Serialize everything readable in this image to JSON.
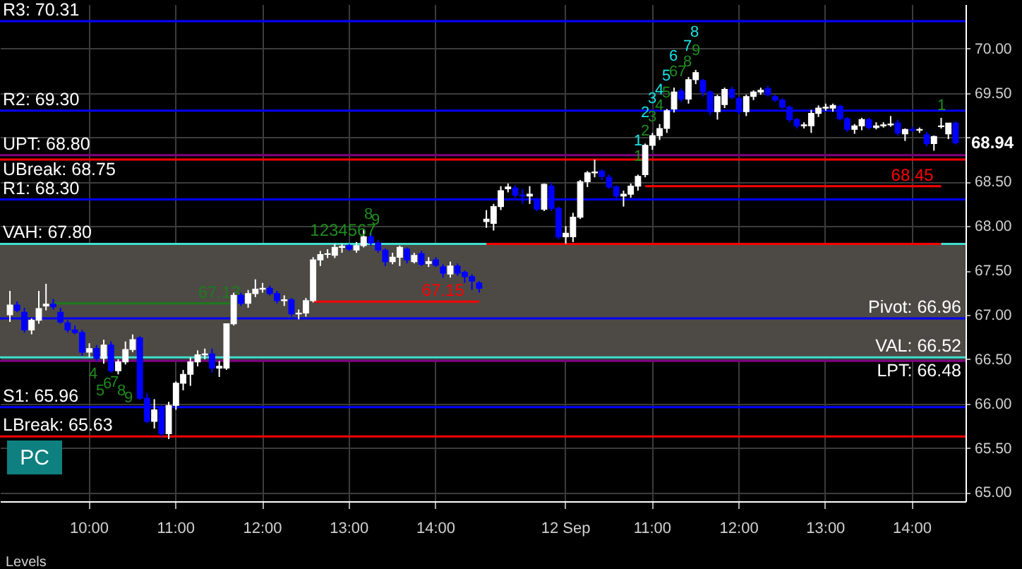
{
  "chart_data": {
    "type": "candlestick",
    "categories": [
      null,
      null,
      null,
      null,
      null,
      null,
      null,
      null,
      null,
      null,
      null,
      "10:00",
      null,
      null,
      null,
      null,
      null,
      null,
      null,
      null,
      null,
      null,
      null,
      "11:00",
      null,
      null,
      null,
      null,
      null,
      null,
      null,
      null,
      null,
      null,
      null,
      "12:00",
      null,
      null,
      null,
      null,
      null,
      null,
      null,
      null,
      null,
      null,
      null,
      "13:00",
      null,
      null,
      null,
      null,
      null,
      null,
      null,
      null,
      null,
      null,
      null,
      "14:00",
      null,
      null,
      null,
      null,
      null,
      null,
      null,
      null,
      null,
      null,
      null,
      null,
      null,
      null,
      null,
      null,
      null,
      "12 Sep",
      null,
      null,
      null,
      null,
      null,
      null,
      null,
      null,
      null,
      null,
      null,
      "11:00",
      null,
      null,
      null,
      null,
      null,
      null,
      null,
      null,
      null,
      null,
      null,
      "12:00",
      null,
      null,
      null,
      null,
      null,
      null,
      null,
      null,
      null,
      null,
      null,
      "13:00",
      null,
      null,
      null,
      null,
      null,
      null,
      null,
      null,
      null,
      null,
      null,
      "14:00",
      null,
      null,
      null,
      null,
      null,
      null
    ],
    "ohlc": [
      [
        67.0,
        67.27,
        66.92,
        67.11
      ],
      [
        67.11,
        67.15,
        67.03,
        67.05
      ],
      [
        67.03,
        67.08,
        66.8,
        66.83
      ],
      [
        66.83,
        66.96,
        66.78,
        66.94
      ],
      [
        66.94,
        67.27,
        66.9,
        67.07
      ],
      [
        67.1,
        67.35,
        67.05,
        67.12
      ],
      [
        67.12,
        67.18,
        67.06,
        67.09
      ],
      [
        67.03,
        67.08,
        66.9,
        66.92
      ],
      [
        66.91,
        66.94,
        66.8,
        66.83
      ],
      [
        66.83,
        66.88,
        66.78,
        66.8
      ],
      [
        66.8,
        66.83,
        66.54,
        66.58
      ],
      [
        66.58,
        66.68,
        66.52,
        66.62
      ],
      [
        66.62,
        66.66,
        66.48,
        66.51
      ],
      [
        66.51,
        66.72,
        66.45,
        66.66
      ],
      [
        66.66,
        66.7,
        66.35,
        66.37
      ],
      [
        66.37,
        66.5,
        66.33,
        66.47
      ],
      [
        66.47,
        66.7,
        66.44,
        66.61
      ],
      [
        66.61,
        66.78,
        66.58,
        66.72
      ],
      [
        66.74,
        66.76,
        66.04,
        66.06
      ],
      [
        66.06,
        66.12,
        65.78,
        65.8
      ],
      [
        65.8,
        66.05,
        65.72,
        65.93
      ],
      [
        65.95,
        65.98,
        65.63,
        65.66
      ],
      [
        65.66,
        66.02,
        65.6,
        65.98
      ],
      [
        65.98,
        66.25,
        65.93,
        66.23
      ],
      [
        66.23,
        66.38,
        66.15,
        66.33
      ],
      [
        66.33,
        66.52,
        66.2,
        66.47
      ],
      [
        66.47,
        66.6,
        66.42,
        66.55
      ],
      [
        66.55,
        66.62,
        66.5,
        66.56
      ],
      [
        66.56,
        66.62,
        66.35,
        66.4
      ],
      [
        66.4,
        66.48,
        66.3,
        66.42
      ],
      [
        66.4,
        66.9,
        66.38,
        66.9
      ],
      [
        66.9,
        67.25,
        66.88,
        67.22
      ],
      [
        67.22,
        67.25,
        67.1,
        67.13
      ],
      [
        67.13,
        67.28,
        67.08,
        67.24
      ],
      [
        67.24,
        67.4,
        67.2,
        67.29
      ],
      [
        67.29,
        67.36,
        67.25,
        67.3
      ],
      [
        67.3,
        67.33,
        67.22,
        67.24
      ],
      [
        67.24,
        67.27,
        67.13,
        67.16
      ],
      [
        67.16,
        67.22,
        67.1,
        67.17
      ],
      [
        67.17,
        67.19,
        66.98,
        67.01
      ],
      [
        67.01,
        67.06,
        66.95,
        67.02
      ],
      [
        67.02,
        67.19,
        66.98,
        67.16
      ],
      [
        67.16,
        67.65,
        67.14,
        67.62
      ],
      [
        67.62,
        67.72,
        67.55,
        67.68
      ],
      [
        67.68,
        67.74,
        67.64,
        67.69
      ],
      [
        67.67,
        67.8,
        67.64,
        67.76
      ],
      [
        67.76,
        67.8,
        67.7,
        67.77
      ],
      [
        67.78,
        67.8,
        67.72,
        67.74
      ],
      [
        67.73,
        67.82,
        67.7,
        67.78
      ],
      [
        67.78,
        67.97,
        67.76,
        67.88
      ],
      [
        67.88,
        67.93,
        67.78,
        67.81
      ],
      [
        67.81,
        67.84,
        67.7,
        67.73
      ],
      [
        67.73,
        67.75,
        67.55,
        67.6
      ],
      [
        67.6,
        67.7,
        67.57,
        67.65
      ],
      [
        67.65,
        67.78,
        67.55,
        67.76
      ],
      [
        67.74,
        67.76,
        67.58,
        67.62
      ],
      [
        67.6,
        67.7,
        67.58,
        67.67
      ],
      [
        67.69,
        67.72,
        67.55,
        67.57
      ],
      [
        67.58,
        67.65,
        67.54,
        67.6
      ],
      [
        67.62,
        67.65,
        67.54,
        67.56
      ],
      [
        67.54,
        67.57,
        67.42,
        67.47
      ],
      [
        67.46,
        67.6,
        67.42,
        67.55
      ],
      [
        67.55,
        67.58,
        67.44,
        67.47
      ],
      [
        67.48,
        67.5,
        67.36,
        67.43
      ],
      [
        67.43,
        67.46,
        67.28,
        67.38
      ],
      [
        67.36,
        67.38,
        67.25,
        67.3
      ],
      [
        68.05,
        68.18,
        67.98,
        68.08
      ],
      [
        68.03,
        68.25,
        67.95,
        68.22
      ],
      [
        68.22,
        68.45,
        68.18,
        68.4
      ],
      [
        68.42,
        68.48,
        68.38,
        68.44
      ],
      [
        68.43,
        68.46,
        68.32,
        68.35
      ],
      [
        68.35,
        68.42,
        68.25,
        68.34
      ],
      [
        68.34,
        68.45,
        68.25,
        68.36
      ],
      [
        68.3,
        68.32,
        68.17,
        68.19
      ],
      [
        68.19,
        68.48,
        68.17,
        68.47
      ],
      [
        68.45,
        68.49,
        68.17,
        68.2
      ],
      [
        68.2,
        68.22,
        67.85,
        67.88
      ],
      [
        67.88,
        68.0,
        67.8,
        67.92
      ],
      [
        67.88,
        68.15,
        67.82,
        68.1
      ],
      [
        68.1,
        68.52,
        68.08,
        68.5
      ],
      [
        68.5,
        68.62,
        68.44,
        68.6
      ],
      [
        68.6,
        68.75,
        68.55,
        68.61
      ],
      [
        68.62,
        68.64,
        68.52,
        68.56
      ],
      [
        68.55,
        68.58,
        68.42,
        68.44
      ],
      [
        68.44,
        68.46,
        68.3,
        68.34
      ],
      [
        68.34,
        68.4,
        68.22,
        68.36
      ],
      [
        68.36,
        68.48,
        68.32,
        68.45
      ],
      [
        68.45,
        68.58,
        68.4,
        68.56
      ],
      [
        68.58,
        68.93,
        68.55,
        68.91
      ],
      [
        68.91,
        69.05,
        68.86,
        69.02
      ],
      [
        69.02,
        69.15,
        68.97,
        69.1
      ],
      [
        69.1,
        69.32,
        69.05,
        69.3
      ],
      [
        69.32,
        69.56,
        69.28,
        69.51
      ],
      [
        69.52,
        69.55,
        69.4,
        69.43
      ],
      [
        69.43,
        69.68,
        69.38,
        69.65
      ],
      [
        69.65,
        69.76,
        69.6,
        69.73
      ],
      [
        69.64,
        69.66,
        69.46,
        69.51
      ],
      [
        69.51,
        69.53,
        69.25,
        69.29
      ],
      [
        69.29,
        69.48,
        69.2,
        69.46
      ],
      [
        69.37,
        69.56,
        69.33,
        69.54
      ],
      [
        69.54,
        69.57,
        69.43,
        69.45
      ],
      [
        69.44,
        69.46,
        69.26,
        69.29
      ],
      [
        69.29,
        69.48,
        69.24,
        69.46
      ],
      [
        69.46,
        69.53,
        69.42,
        69.51
      ],
      [
        69.51,
        69.56,
        69.48,
        69.53
      ],
      [
        69.55,
        69.58,
        69.46,
        69.48
      ],
      [
        69.46,
        69.48,
        69.4,
        69.42
      ],
      [
        69.42,
        69.44,
        69.32,
        69.34
      ],
      [
        69.34,
        69.36,
        69.17,
        69.2
      ],
      [
        69.2,
        69.22,
        69.1,
        69.13
      ],
      [
        69.13,
        69.17,
        69.1,
        69.14
      ],
      [
        69.13,
        69.31,
        69.05,
        69.27
      ],
      [
        69.27,
        69.36,
        69.23,
        69.33
      ],
      [
        69.33,
        69.38,
        69.3,
        69.34
      ],
      [
        69.33,
        69.38,
        69.29,
        69.36
      ],
      [
        69.35,
        69.37,
        69.19,
        69.21
      ],
      [
        69.21,
        69.23,
        69.06,
        69.09
      ],
      [
        69.09,
        69.15,
        69.04,
        69.13
      ],
      [
        69.13,
        69.22,
        69.08,
        69.2
      ],
      [
        69.2,
        69.22,
        69.09,
        69.11
      ],
      [
        69.11,
        69.17,
        69.09,
        69.13
      ],
      [
        69.13,
        69.17,
        69.11,
        69.14
      ],
      [
        69.14,
        69.24,
        69.12,
        69.15
      ],
      [
        69.16,
        69.2,
        69.02,
        69.05
      ],
      [
        69.04,
        69.1,
        68.96,
        69.09
      ],
      [
        69.09,
        69.12,
        69.06,
        69.08
      ],
      [
        69.08,
        69.11,
        69.05,
        69.09
      ],
      [
        69.03,
        69.06,
        68.9,
        68.93
      ],
      [
        68.93,
        69.02,
        68.85,
        69.01
      ],
      [
        69.12,
        69.22,
        69.1,
        69.13
      ],
      [
        69.04,
        69.16,
        68.98,
        69.16
      ],
      [
        69.16,
        69.18,
        68.92,
        68.94
      ]
    ],
    "series": [
      {
        "type": "line",
        "color": "#1e7a1e",
        "values": [
          null,
          null,
          null,
          null,
          null,
          null,
          67.13,
          67.13,
          67.13,
          67.13,
          67.13,
          67.13,
          67.13,
          67.13,
          67.13,
          67.13,
          67.13,
          67.13,
          67.13,
          67.13,
          67.13,
          67.13,
          67.13,
          67.13,
          67.13,
          67.13,
          67.13,
          67.13,
          67.13,
          67.13,
          67.13,
          67.13,
          null,
          null,
          null,
          null,
          null,
          null,
          null,
          null,
          null,
          null,
          null,
          null,
          null,
          null,
          null,
          null,
          null,
          null,
          null,
          null,
          null,
          null,
          null,
          null,
          null,
          null,
          null,
          null,
          null,
          null,
          null,
          null,
          null,
          null,
          null,
          null,
          null,
          null,
          null,
          null,
          null,
          null,
          null,
          null,
          null,
          null,
          null,
          null,
          null,
          null,
          null,
          null,
          null,
          null,
          null,
          null,
          null,
          null,
          null,
          null,
          null,
          null,
          null,
          null,
          null,
          null,
          null,
          null,
          null,
          null,
          null,
          null,
          null,
          null,
          null,
          null,
          null,
          null,
          null,
          null,
          null,
          null,
          null,
          null,
          null,
          null,
          null,
          null,
          null,
          null,
          null,
          null,
          null,
          null,
          null,
          null,
          null,
          null,
          null,
          null
        ],
        "value_labels": [
          null,
          null,
          null,
          null,
          null,
          null,
          null,
          null,
          null,
          null,
          null,
          null,
          null,
          null,
          null,
          null,
          null,
          null,
          null,
          null,
          null,
          null,
          null,
          null,
          null,
          null,
          null,
          null,
          null,
          "67.13",
          null,
          null,
          null,
          null,
          null,
          null,
          null,
          null,
          null,
          null,
          null,
          null,
          null,
          null,
          null,
          null,
          null,
          null,
          null,
          null,
          null,
          null,
          null,
          null,
          null,
          null,
          null,
          null,
          null,
          null,
          null,
          null,
          null,
          null,
          null,
          null,
          null,
          null,
          null,
          null,
          null,
          null,
          null,
          null,
          null,
          null,
          null,
          null,
          null,
          null,
          null,
          null,
          null,
          null,
          null,
          null,
          null,
          null,
          null,
          null,
          null,
          null,
          null,
          null,
          null,
          null,
          null,
          null,
          null,
          null,
          null,
          null,
          null,
          null,
          null,
          null,
          null,
          null,
          null,
          null,
          null,
          null,
          null,
          null,
          null,
          null,
          null,
          null,
          null,
          null,
          null,
          null,
          null,
          null,
          null,
          null,
          null,
          null,
          null,
          null,
          null,
          null
        ]
      },
      {
        "type": "line",
        "color": "#ff0000",
        "values": [
          null,
          null,
          null,
          null,
          null,
          null,
          null,
          null,
          null,
          null,
          null,
          null,
          null,
          null,
          null,
          null,
          null,
          null,
          null,
          null,
          null,
          null,
          null,
          null,
          null,
          null,
          null,
          null,
          null,
          null,
          null,
          null,
          null,
          null,
          null,
          null,
          null,
          null,
          null,
          null,
          null,
          null,
          67.15,
          67.15,
          67.15,
          67.15,
          67.15,
          67.15,
          67.15,
          67.15,
          67.15,
          67.15,
          67.15,
          67.15,
          67.15,
          67.15,
          67.15,
          67.15,
          67.15,
          67.15,
          67.15,
          67.15,
          67.15,
          67.15,
          67.15,
          67.15,
          null,
          null,
          null,
          null,
          null,
          null,
          null,
          null,
          null,
          null,
          null,
          null,
          null,
          null,
          null,
          null,
          null,
          null,
          null,
          null,
          null,
          null,
          null,
          null,
          null,
          null,
          null,
          null,
          null,
          null,
          null,
          null,
          null,
          null,
          null,
          null,
          null,
          null,
          null,
          null,
          null,
          null,
          null,
          null,
          null,
          null,
          null,
          null,
          null,
          null,
          null,
          null,
          null,
          null,
          null,
          null,
          null,
          null,
          null,
          null,
          null,
          null,
          null,
          null,
          null,
          null
        ],
        "value_labels": [
          null,
          null,
          null,
          null,
          null,
          null,
          null,
          null,
          null,
          null,
          null,
          null,
          null,
          null,
          null,
          null,
          null,
          null,
          null,
          null,
          null,
          null,
          null,
          null,
          null,
          null,
          null,
          null,
          null,
          null,
          null,
          null,
          null,
          null,
          null,
          null,
          null,
          null,
          null,
          null,
          null,
          null,
          null,
          null,
          null,
          null,
          null,
          null,
          null,
          null,
          null,
          null,
          null,
          null,
          null,
          null,
          null,
          null,
          null,
          null,
          "67.15",
          null,
          null,
          null,
          null,
          null,
          null,
          null,
          null,
          null,
          null,
          null,
          null,
          null,
          null,
          null,
          null,
          null,
          null,
          null,
          null,
          null,
          null,
          null,
          null,
          null,
          null,
          null,
          null,
          null,
          null,
          null,
          null,
          null,
          null,
          null,
          null,
          null,
          null,
          null,
          null,
          null,
          null,
          null,
          null,
          null,
          null,
          null,
          null,
          null,
          null,
          null,
          null,
          null,
          null,
          null,
          null,
          null,
          null,
          null,
          null,
          null,
          null,
          null,
          null,
          null,
          null,
          null,
          null,
          null,
          null,
          null
        ]
      },
      {
        "type": "line",
        "color": "#ff0000",
        "values": [
          null,
          null,
          null,
          null,
          null,
          null,
          null,
          null,
          null,
          null,
          null,
          null,
          null,
          null,
          null,
          null,
          null,
          null,
          null,
          null,
          null,
          null,
          null,
          null,
          null,
          null,
          null,
          null,
          null,
          null,
          null,
          null,
          null,
          null,
          null,
          null,
          null,
          null,
          null,
          null,
          null,
          null,
          null,
          null,
          null,
          null,
          null,
          null,
          null,
          null,
          null,
          null,
          null,
          null,
          null,
          null,
          null,
          null,
          null,
          null,
          null,
          null,
          null,
          null,
          null,
          null,
          67.8,
          67.8,
          67.8,
          67.8,
          67.8,
          67.8,
          67.8,
          67.8,
          67.8,
          67.8,
          67.8,
          67.8,
          67.8,
          67.8,
          67.8,
          67.8,
          67.8,
          67.8,
          67.8,
          67.8,
          67.8,
          67.8,
          67.8,
          67.8,
          67.8,
          67.8,
          67.8,
          67.8,
          67.8,
          67.8,
          67.8,
          67.8,
          67.8,
          67.8,
          67.8,
          67.8,
          67.8,
          67.8,
          67.8,
          67.8,
          67.8,
          67.8,
          67.8,
          67.8,
          67.8,
          67.8,
          67.8,
          67.8,
          67.8,
          67.8,
          67.8,
          67.8,
          67.8,
          67.8,
          67.8,
          67.8,
          67.8,
          67.8,
          67.8,
          67.8,
          67.8,
          67.8,
          67.8,
          67.8,
          null,
          null
        ]
      },
      {
        "type": "line",
        "color": "#ff0000",
        "values": [
          null,
          null,
          null,
          null,
          null,
          null,
          null,
          null,
          null,
          null,
          null,
          null,
          null,
          null,
          null,
          null,
          null,
          null,
          null,
          null,
          null,
          null,
          null,
          null,
          null,
          null,
          null,
          null,
          null,
          null,
          null,
          null,
          null,
          null,
          null,
          null,
          null,
          null,
          null,
          null,
          null,
          null,
          null,
          null,
          null,
          null,
          null,
          null,
          null,
          null,
          null,
          null,
          null,
          null,
          null,
          null,
          null,
          null,
          null,
          null,
          null,
          null,
          null,
          null,
          null,
          null,
          null,
          null,
          null,
          null,
          null,
          null,
          null,
          null,
          null,
          null,
          null,
          null,
          null,
          null,
          null,
          null,
          null,
          null,
          null,
          null,
          null,
          null,
          68.45,
          68.45,
          68.45,
          68.45,
          68.45,
          68.45,
          68.45,
          68.45,
          68.45,
          68.45,
          68.45,
          68.45,
          68.45,
          68.45,
          68.45,
          68.45,
          68.45,
          68.45,
          68.45,
          68.45,
          68.45,
          68.45,
          68.45,
          68.45,
          68.45,
          68.45,
          68.45,
          68.45,
          68.45,
          68.45,
          68.45,
          68.45,
          68.45,
          68.45,
          68.45,
          68.45,
          68.45,
          68.45,
          68.45,
          68.45,
          68.45,
          68.45,
          null,
          null
        ],
        "value_labels": [
          null,
          null,
          null,
          null,
          null,
          null,
          null,
          null,
          null,
          null,
          null,
          null,
          null,
          null,
          null,
          null,
          null,
          null,
          null,
          null,
          null,
          null,
          null,
          null,
          null,
          null,
          null,
          null,
          null,
          null,
          null,
          null,
          null,
          null,
          null,
          null,
          null,
          null,
          null,
          null,
          null,
          null,
          null,
          null,
          null,
          null,
          null,
          null,
          null,
          null,
          null,
          null,
          null,
          null,
          null,
          null,
          null,
          null,
          null,
          null,
          null,
          null,
          null,
          null,
          null,
          null,
          null,
          null,
          null,
          null,
          null,
          null,
          null,
          null,
          null,
          null,
          null,
          null,
          null,
          null,
          null,
          null,
          null,
          null,
          null,
          null,
          null,
          null,
          null,
          null,
          null,
          null,
          null,
          null,
          null,
          null,
          null,
          null,
          null,
          null,
          null,
          null,
          null,
          null,
          null,
          null,
          null,
          null,
          null,
          null,
          null,
          null,
          null,
          null,
          null,
          null,
          null,
          null,
          null,
          null,
          null,
          null,
          null,
          null,
          null,
          "68.45",
          null,
          null,
          null,
          null,
          null,
          null
        ]
      }
    ],
    "ylim": [
      64.9,
      70.5
    ],
    "yticks": [
      {
        "value": 65,
        "label": "65.00"
      },
      {
        "value": 65.5,
        "label": "65.50"
      },
      {
        "value": 66,
        "label": "66.00"
      },
      {
        "value": 66.5,
        "label": "66.50"
      },
      {
        "value": 67,
        "label": "67.00"
      },
      {
        "value": 67.5,
        "label": "67.50"
      },
      {
        "value": 68,
        "label": "68.00"
      },
      {
        "value": 68.5,
        "label": "68.50"
      },
      {
        "value": 69,
        "label": null
      },
      {
        "value": 69.5,
        "label": "69.50"
      },
      {
        "value": 70,
        "label": "70.00"
      }
    ],
    "grid": true,
    "bands": [
      {
        "axis": "y",
        "from": 66.52,
        "to": 67.8,
        "color": "#4d4a45"
      }
    ],
    "ref_lines": [
      {
        "axis": "y",
        "value": 70.31,
        "label": "R3: 70.31",
        "color": "#0000ff"
      },
      {
        "axis": "y",
        "value": 69.3,
        "label": "R2: 69.30",
        "color": "#0000ff"
      },
      {
        "axis": "y",
        "value": 68.8,
        "label": "UPT: 68.80",
        "color": "#800080"
      },
      {
        "axis": "y",
        "value": 68.75,
        "label": "UBreak: 68.75",
        "color": "#ff0000"
      },
      {
        "axis": "y",
        "value": 68.3,
        "label": "R1: 68.30",
        "color": "#0000ff"
      },
      {
        "axis": "y",
        "value": 67.8,
        "label": "VAH: 67.80",
        "color": "#40e0d0"
      },
      {
        "axis": "y",
        "value": 66.96,
        "label": "Pivot: 66.96",
        "color": "#0000ff"
      },
      {
        "axis": "y",
        "value": 66.52,
        "label": "VAL: 66.52",
        "color": "#40e0d0"
      },
      {
        "axis": "y",
        "value": 66.48,
        "label": "LPT: 66.48",
        "color": "#800080"
      },
      {
        "axis": "y",
        "value": 65.96,
        "label": "S1: 65.96",
        "color": "#0000ff"
      },
      {
        "axis": "y",
        "value": 65.63,
        "label": "LBreak: 65.63",
        "color": "#ff0000"
      }
    ],
    "annotations": [
      "Levels",
      "PC",
      "68.94",
      "4",
      "5",
      "6",
      "7",
      "8",
      "9",
      "1234567",
      "8",
      "9",
      "1",
      "2",
      "3",
      "4",
      "5",
      "6",
      "7",
      "8",
      "1",
      "2",
      "3",
      "4",
      "5",
      "6",
      "7",
      "8",
      "9",
      "1"
    ]
  }
}
